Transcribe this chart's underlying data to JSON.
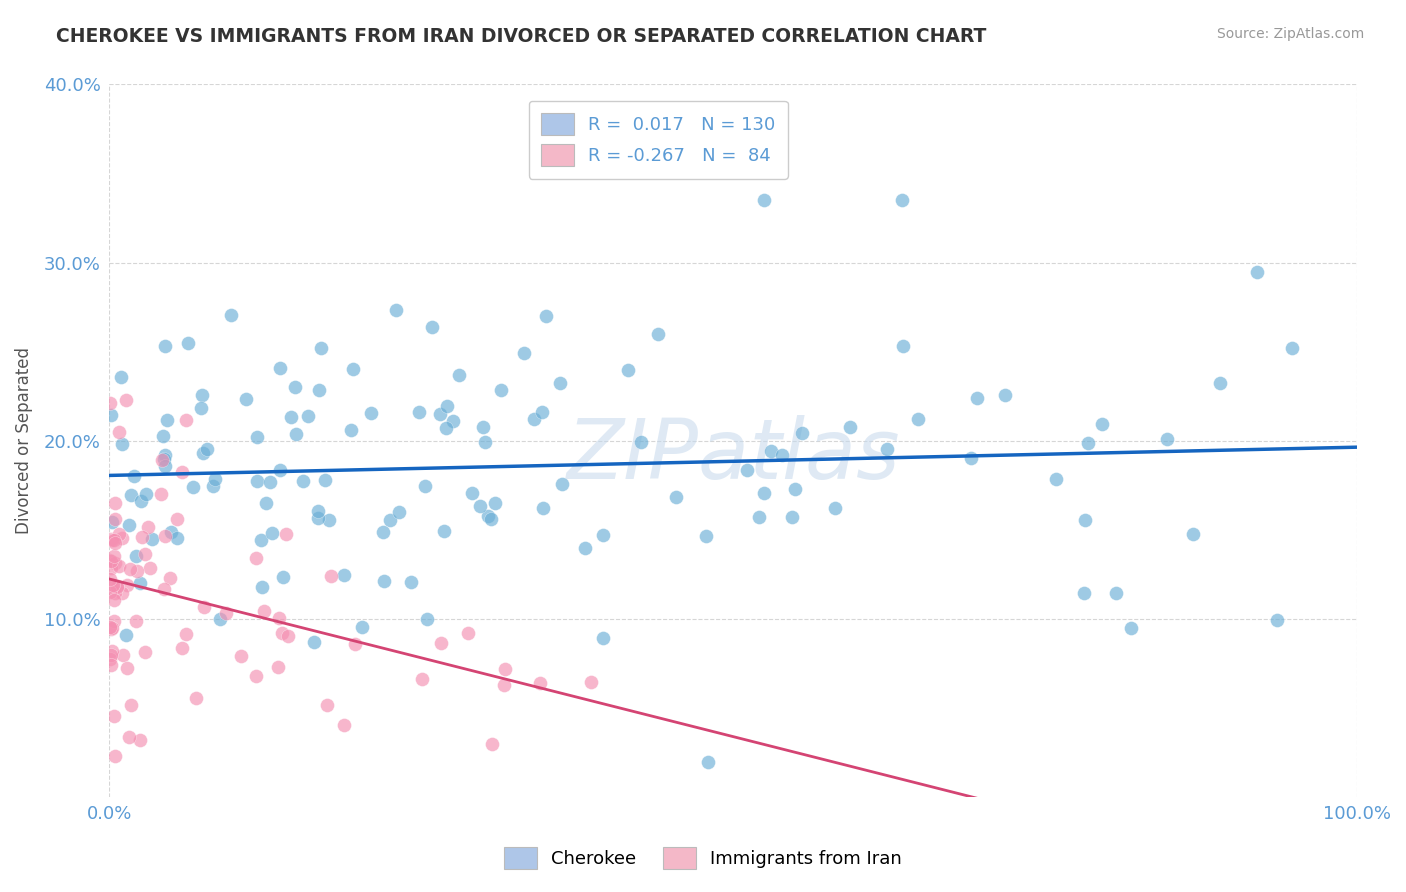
{
  "title": "CHEROKEE VS IMMIGRANTS FROM IRAN DIVORCED OR SEPARATED CORRELATION CHART",
  "source": "Source: ZipAtlas.com",
  "ylabel": "Divorced or Separated",
  "xlim": [
    0,
    1.0
  ],
  "ylim": [
    0,
    0.4
  ],
  "legend1_label_r": "R =",
  "legend1_label_rv": " 0.017",
  "legend1_label_n": "N =",
  "legend1_label_nv": "130",
  "legend2_label_r": "R =",
  "legend2_label_rv": "-0.267",
  "legend2_label_n": "N =",
  "legend2_label_nv": " 84",
  "legend1_color": "#aec6e8",
  "legend2_color": "#f4b8c8",
  "blue_color": "#6aaed6",
  "pink_color": "#f48fb1",
  "blue_line_color": "#1565c0",
  "pink_line_color": "#d44473",
  "watermark": "ZIPatlas",
  "blue_r": 0.017,
  "blue_n": 130,
  "pink_r": -0.267,
  "pink_n": 84,
  "background_color": "#ffffff",
  "grid_color": "#cccccc",
  "title_color": "#333333",
  "axis_color": "#5b9bd5"
}
